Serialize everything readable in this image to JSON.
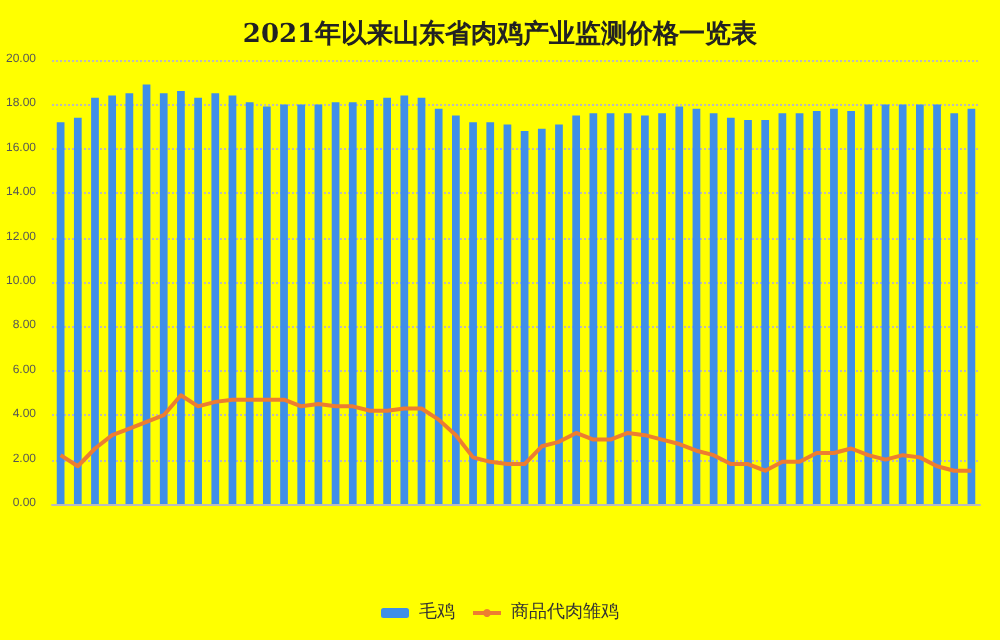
{
  "chart_data": {
    "type": "bar",
    "title": "2021年以来山东省肉鸡产业监测价格一览表",
    "categories": [
      null,
      null,
      null,
      null,
      null,
      null,
      null,
      null,
      null,
      null,
      null,
      null,
      null,
      null,
      null,
      null,
      null,
      null,
      null,
      null,
      null,
      null,
      null,
      null,
      null,
      null,
      null,
      null,
      null,
      null,
      null,
      null,
      null,
      null,
      null,
      null,
      null,
      null,
      null,
      null,
      null,
      null,
      null,
      null,
      null,
      null,
      null,
      null,
      null,
      null,
      null,
      null,
      null,
      null
    ],
    "series": [
      {
        "name": "毛鸡",
        "color": "#3f8fe8",
        "values": [
          17.2,
          17.4,
          18.3,
          18.4,
          18.5,
          18.9,
          18.5,
          18.6,
          18.3,
          18.5,
          18.4,
          18.1,
          17.9,
          18.0,
          18.0,
          18.0,
          18.1,
          18.1,
          18.2,
          18.3,
          18.4,
          18.3,
          17.8,
          17.5,
          17.2,
          17.2,
          17.1,
          16.8,
          16.9,
          17.1,
          17.5,
          17.6,
          17.6,
          17.6,
          17.5,
          17.6,
          17.9,
          17.8,
          17.6,
          17.4,
          17.3,
          17.3,
          17.6,
          17.6,
          17.7,
          17.8,
          17.7,
          18.0,
          18.0,
          18.0,
          18.0,
          18.0,
          17.6,
          17.8
        ]
      },
      {
        "name": "商品代肉雏鸡",
        "type": "line",
        "color": "#ed7d31",
        "values": [
          2.2,
          1.7,
          2.5,
          3.1,
          3.4,
          3.7,
          4.0,
          4.9,
          4.4,
          4.6,
          4.7,
          4.7,
          4.7,
          4.7,
          4.4,
          4.5,
          4.4,
          4.4,
          4.2,
          4.2,
          4.3,
          4.3,
          3.8,
          3.1,
          2.1,
          1.9,
          1.8,
          1.8,
          2.6,
          2.8,
          3.2,
          2.9,
          2.9,
          3.2,
          3.1,
          2.9,
          2.7,
          2.4,
          2.2,
          1.8,
          1.8,
          1.5,
          1.9,
          1.9,
          2.3,
          2.3,
          2.5,
          2.2,
          2.0,
          2.2,
          2.1,
          1.7,
          1.5,
          1.5
        ]
      }
    ],
    "ylim": [
      0,
      20
    ],
    "yticks": [
      {
        "value": 0,
        "label": "0.00"
      },
      {
        "value": 2,
        "label": "2.00"
      },
      {
        "value": 4,
        "label": "4.00"
      },
      {
        "value": 6,
        "label": "6.00"
      },
      {
        "value": 8,
        "label": "8.00"
      },
      {
        "value": 10,
        "label": "10.00"
      },
      {
        "value": 12,
        "label": "12.00"
      },
      {
        "value": 14,
        "label": "14.00"
      },
      {
        "value": 16,
        "label": "16.00"
      },
      {
        "value": 18,
        "label": "18.00"
      },
      {
        "value": 20,
        "label": "20.00"
      }
    ],
    "grid": "y",
    "legend": "bottom",
    "marker": "none"
  }
}
